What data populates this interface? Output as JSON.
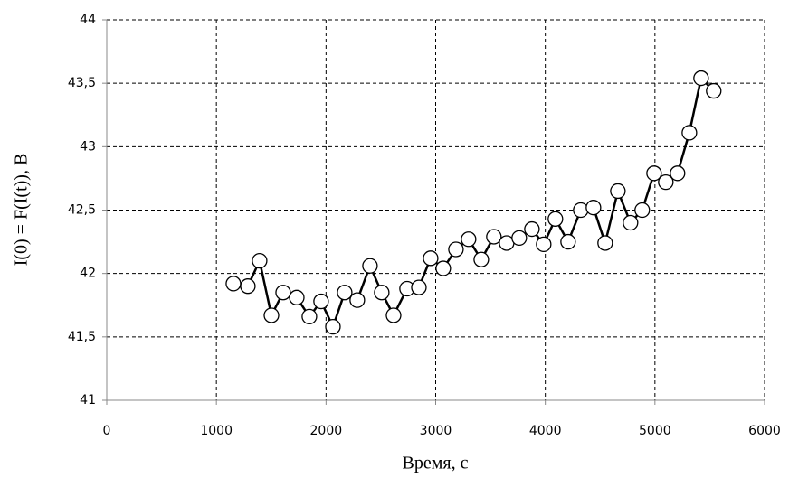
{
  "chart_data": {
    "type": "line",
    "x_label": "Время, с",
    "y_label": "I(0) = F(I(t)), В",
    "x": [
      1155,
      1287,
      1394,
      1502,
      1609,
      1733,
      1848,
      1955,
      2063,
      2170,
      2285,
      2401,
      2508,
      2616,
      2739,
      2847,
      2954,
      3069,
      3185,
      3300,
      3416,
      3531,
      3647,
      3762,
      3878,
      3985,
      4092,
      4208,
      4323,
      4439,
      4546,
      4662,
      4777,
      4884,
      4992,
      5099,
      5206,
      5314,
      5421,
      5536
    ],
    "values": [
      41.92,
      41.9,
      42.1,
      41.67,
      41.85,
      41.81,
      41.66,
      41.78,
      41.58,
      41.85,
      41.79,
      42.06,
      41.85,
      41.67,
      41.88,
      41.89,
      42.12,
      42.04,
      42.19,
      42.27,
      42.11,
      42.29,
      42.24,
      42.28,
      42.35,
      42.23,
      42.43,
      42.25,
      42.5,
      42.52,
      42.24,
      42.65,
      42.4,
      42.5,
      42.79,
      42.72,
      42.79,
      43.11,
      43.54,
      43.44
    ],
    "color": "#000000",
    "xlim": [
      0,
      6000
    ],
    "xticks": [
      0,
      1000,
      2000,
      3000,
      4000,
      5000,
      6000
    ],
    "ylim": [
      41,
      44
    ],
    "yticks": [
      41,
      {
        "value": 41.5,
        "label": "41,5"
      },
      42,
      {
        "value": 42.5,
        "label": "42,5"
      },
      43,
      {
        "value": 43.5,
        "label": "43,5"
      },
      44
    ],
    "grid": true
  }
}
